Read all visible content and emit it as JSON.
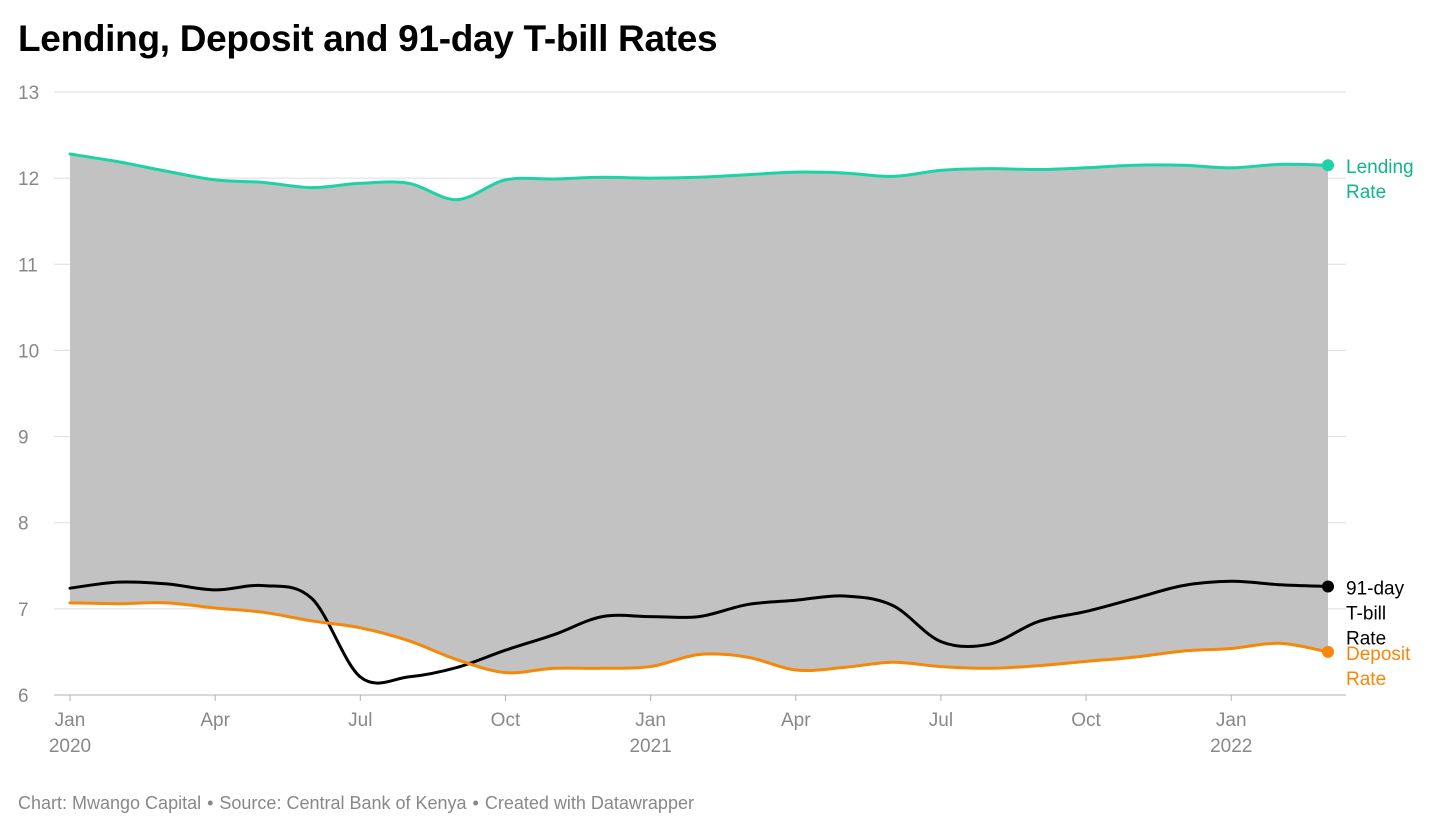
{
  "chart_data": {
    "type": "area",
    "title": "Lending, Deposit and 91-day T-bill Rates",
    "xlabel": "",
    "ylabel": "",
    "ylim": [
      6,
      13
    ],
    "yticks": [
      6,
      7,
      8,
      9,
      10,
      11,
      12,
      13
    ],
    "grid": true,
    "x": [
      "2020-01",
      "2020-02",
      "2020-03",
      "2020-04",
      "2020-05",
      "2020-06",
      "2020-07",
      "2020-08",
      "2020-09",
      "2020-10",
      "2020-11",
      "2020-12",
      "2021-01",
      "2021-02",
      "2021-03",
      "2021-04",
      "2021-05",
      "2021-06",
      "2021-07",
      "2021-08",
      "2021-09",
      "2021-10",
      "2021-11",
      "2021-12",
      "2022-01",
      "2022-02",
      "2022-03"
    ],
    "x_ticks": [
      {
        "x": "2020-01",
        "label": "Jan",
        "year": "2020"
      },
      {
        "x": "2020-04",
        "label": "Apr",
        "year": ""
      },
      {
        "x": "2020-07",
        "label": "Jul",
        "year": ""
      },
      {
        "x": "2020-10",
        "label": "Oct",
        "year": ""
      },
      {
        "x": "2021-01",
        "label": "Jan",
        "year": "2021"
      },
      {
        "x": "2021-04",
        "label": "Apr",
        "year": ""
      },
      {
        "x": "2021-07",
        "label": "Jul",
        "year": ""
      },
      {
        "x": "2021-10",
        "label": "Oct",
        "year": ""
      },
      {
        "x": "2022-01",
        "label": "Jan",
        "year": "2022"
      }
    ],
    "series": [
      {
        "name": "Lending Rate",
        "label_lines": [
          "Lending",
          "Rate"
        ],
        "color": "#1dd3a5",
        "label_color": "#12b48a",
        "values": [
          12.28,
          12.19,
          12.08,
          11.98,
          11.95,
          11.89,
          11.94,
          11.94,
          11.75,
          11.98,
          11.99,
          12.01,
          12.0,
          12.01,
          12.04,
          12.07,
          12.06,
          12.02,
          12.09,
          12.11,
          12.1,
          12.12,
          12.15,
          12.15,
          12.12,
          12.16,
          12.15
        ]
      },
      {
        "name": "91-day T-bill Rate",
        "label_lines": [
          "91-day",
          "T-bill",
          "Rate"
        ],
        "color": "#000000",
        "label_color": "#000000",
        "values": [
          7.24,
          7.31,
          7.29,
          7.22,
          7.27,
          7.12,
          6.21,
          6.21,
          6.32,
          6.52,
          6.7,
          6.91,
          6.91,
          6.91,
          7.05,
          7.1,
          7.15,
          7.04,
          6.62,
          6.59,
          6.85,
          6.97,
          7.12,
          7.27,
          7.32,
          7.28,
          7.26
        ]
      },
      {
        "name": "Deposit Rate",
        "label_lines": [
          "Deposit",
          "Rate"
        ],
        "color": "#f5870a",
        "label_color": "#f5870a",
        "values": [
          7.07,
          7.06,
          7.07,
          7.01,
          6.96,
          6.86,
          6.78,
          6.63,
          6.41,
          6.26,
          6.31,
          6.31,
          6.33,
          6.47,
          6.44,
          6.29,
          6.32,
          6.38,
          6.33,
          6.31,
          6.34,
          6.39,
          6.44,
          6.51,
          6.54,
          6.6,
          6.5
        ]
      }
    ],
    "fill_between": {
      "upper": "Lending Rate",
      "lower": "Deposit Rate",
      "color": "#c2c2c2"
    },
    "footer": {
      "chart_credit": "Chart: Mwango Capital",
      "source": "Source: Central Bank of Kenya",
      "tool": "Created with Datawrapper",
      "separator": "•"
    }
  }
}
